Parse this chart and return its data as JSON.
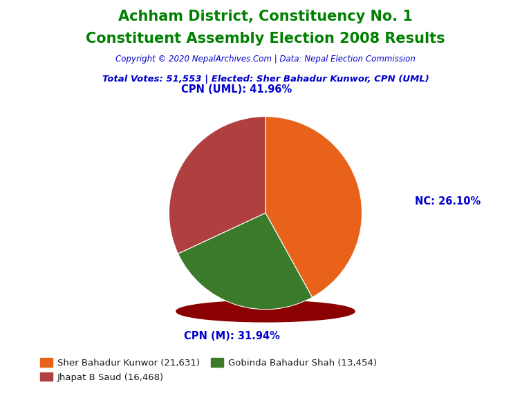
{
  "title_line1": "Achham District, Constituency No. 1",
  "title_line2": "Constituent Assembly Election 2008 Results",
  "title_color": "#008000",
  "copyright_text": "Copyright © 2020 NepalArchives.Com | Data: Nepal Election Commission",
  "copyright_color": "#0000CD",
  "info_text": "Total Votes: 51,553 | Elected: Sher Bahadur Kunwor, CPN (UML)",
  "info_color": "#0000CD",
  "slices": [
    {
      "label": "CPN (UML): 41.96%",
      "value": 21631,
      "color": "#E8621A",
      "pct": 41.96
    },
    {
      "label": "NC: 26.10%",
      "value": 13454,
      "color": "#3A7A2A",
      "pct": 26.1
    },
    {
      "label": "CPN (M): 31.94%",
      "value": 16468,
      "color": "#B04040",
      "pct": 31.94
    }
  ],
  "legend_entries": [
    {
      "label": "Sher Bahadur Kunwor (21,631)",
      "color": "#E8621A"
    },
    {
      "label": "Jhapat B Saud (16,468)",
      "color": "#B04040"
    },
    {
      "label": "Gobinda Bahadur Shah (13,454)",
      "color": "#3A7A2A"
    }
  ],
  "label_color": "#0000CD",
  "shadow_color": "#8B0000",
  "background_color": "#FFFFFF"
}
